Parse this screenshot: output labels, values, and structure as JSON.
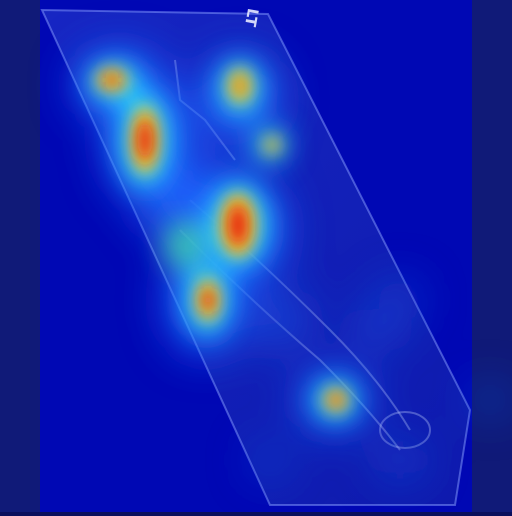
{
  "image": {
    "kind": "heatmap-overlay-on-radiograph",
    "colormap": "jet",
    "background_color": "#0a0f5c"
  },
  "marker": {
    "text": "LT"
  },
  "colors": {
    "cold": "#0a14a0",
    "cool": "#1e64ff",
    "mid": "#28e6ff",
    "warm": "#ffd21e",
    "hot": "#e61e0a"
  }
}
